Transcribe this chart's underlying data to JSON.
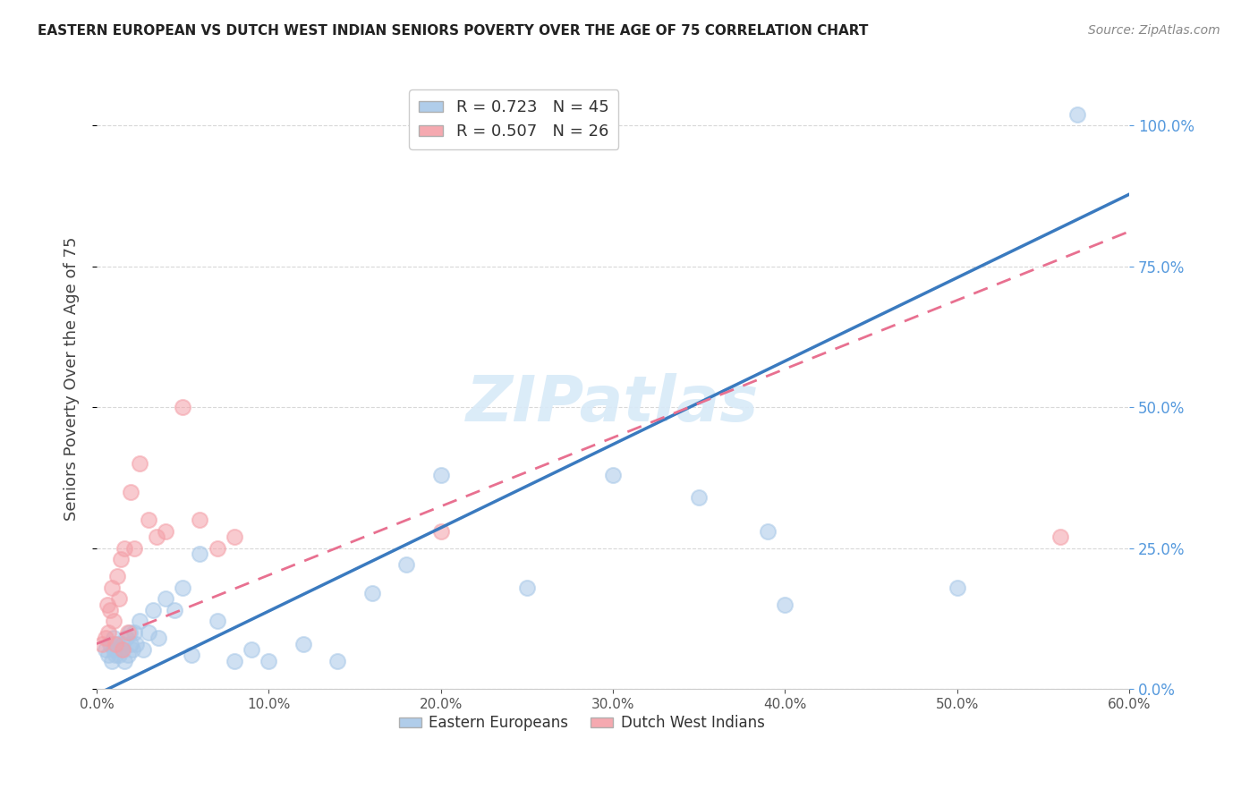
{
  "title": "EASTERN EUROPEAN VS DUTCH WEST INDIAN SENIORS POVERTY OVER THE AGE OF 75 CORRELATION CHART",
  "source": "Source: ZipAtlas.com",
  "ylabel": "Seniors Poverty Over the Age of 75",
  "xlim": [
    0.0,
    0.6
  ],
  "ylim": [
    0.0,
    1.1
  ],
  "xticks": [
    0.0,
    0.1,
    0.2,
    0.3,
    0.4,
    0.5,
    0.6
  ],
  "yticks_right": [
    0.0,
    0.25,
    0.5,
    0.75,
    1.0
  ],
  "legend_label_blue": "Eastern Europeans",
  "legend_label_pink": "Dutch West Indians",
  "blue_scatter_color": "#a8c8e8",
  "pink_scatter_color": "#f4a0a8",
  "blue_line_color": "#3a7abf",
  "pink_line_color": "#e87090",
  "right_axis_color": "#5599dd",
  "watermark_color": "#d8eaf8",
  "grid_color": "#d8d8d8",
  "background_color": "#ffffff",
  "title_color": "#222222",
  "axis_label_color": "#444444",
  "blue_scatter_x": [
    0.005,
    0.007,
    0.008,
    0.009,
    0.01,
    0.01,
    0.011,
    0.012,
    0.013,
    0.014,
    0.015,
    0.016,
    0.017,
    0.018,
    0.019,
    0.02,
    0.021,
    0.022,
    0.023,
    0.025,
    0.027,
    0.03,
    0.033,
    0.036,
    0.04,
    0.045,
    0.05,
    0.055,
    0.06,
    0.07,
    0.08,
    0.09,
    0.1,
    0.12,
    0.14,
    0.16,
    0.18,
    0.2,
    0.25,
    0.3,
    0.35,
    0.39,
    0.4,
    0.5,
    0.57
  ],
  "blue_scatter_y": [
    0.07,
    0.06,
    0.08,
    0.05,
    0.07,
    0.09,
    0.06,
    0.08,
    0.06,
    0.07,
    0.08,
    0.05,
    0.09,
    0.06,
    0.1,
    0.08,
    0.07,
    0.1,
    0.08,
    0.12,
    0.07,
    0.1,
    0.14,
    0.09,
    0.16,
    0.14,
    0.18,
    0.06,
    0.24,
    0.12,
    0.05,
    0.07,
    0.05,
    0.08,
    0.05,
    0.17,
    0.22,
    0.38,
    0.18,
    0.38,
    0.34,
    0.28,
    0.15,
    0.18,
    1.02
  ],
  "pink_scatter_x": [
    0.003,
    0.005,
    0.006,
    0.007,
    0.008,
    0.009,
    0.01,
    0.011,
    0.012,
    0.013,
    0.014,
    0.015,
    0.016,
    0.018,
    0.02,
    0.022,
    0.025,
    0.03,
    0.035,
    0.04,
    0.05,
    0.06,
    0.07,
    0.08,
    0.2,
    0.56
  ],
  "pink_scatter_y": [
    0.08,
    0.09,
    0.15,
    0.1,
    0.14,
    0.18,
    0.12,
    0.08,
    0.2,
    0.16,
    0.23,
    0.07,
    0.25,
    0.1,
    0.35,
    0.25,
    0.4,
    0.3,
    0.27,
    0.28,
    0.5,
    0.3,
    0.25,
    0.27,
    0.28,
    0.27
  ],
  "blue_line_slope": 1.48,
  "blue_line_intercept": -0.01,
  "pink_line_slope": 1.22,
  "pink_line_intercept": 0.08
}
